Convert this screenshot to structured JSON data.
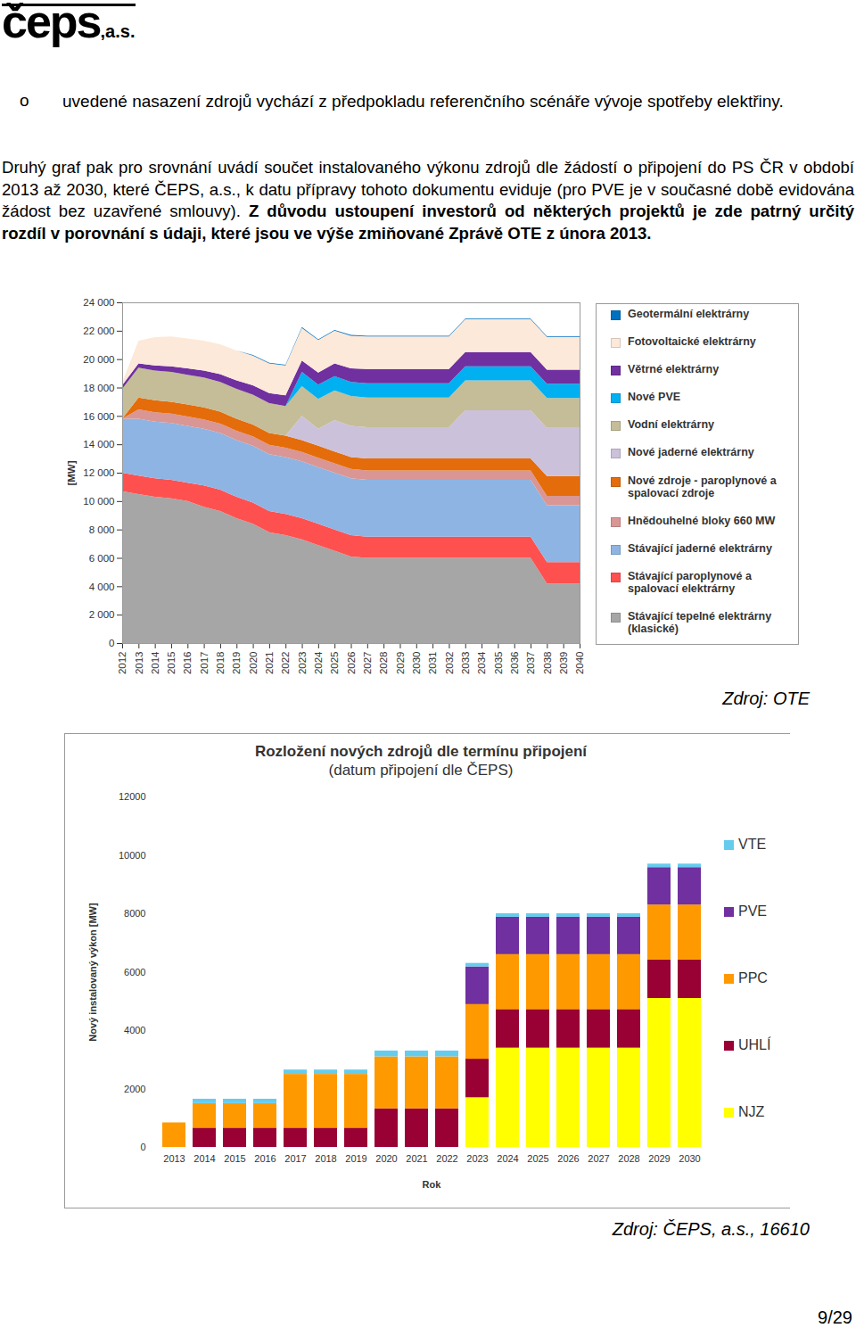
{
  "header": {
    "logo": "čeps",
    "logo_suffix": ",a.s."
  },
  "bullet_marker": "o",
  "bullet": "uvedené nasazení zdrojů vychází z předpokladu referenčního scénáře vývoje spotřeby elektřiny.",
  "paragraph": {
    "text": "Druhý graf pak pro srovnání uvádí součet instalovaného výkonu zdrojů dle žádostí o připojení do PS ČR v období 2013 až 2030, které ČEPS, a.s., k datu přípravy tohoto dokumentu eviduje (pro PVE je v současné době evidována žádost bez uzavřené smlouvy).",
    "bold": "Z důvodu ustoupení investorů od některých projektů je zde patrný určitý rozdíl v porovnání s údaji, které jsou ve výše zmiňované Zprávě OTE z února 2013."
  },
  "chart_data": [
    {
      "type": "area",
      "stacked": true,
      "ylabel": "[MW]",
      "x": [
        2012,
        2013,
        2014,
        2015,
        2016,
        2017,
        2018,
        2019,
        2020,
        2021,
        2022,
        2023,
        2024,
        2025,
        2026,
        2027,
        2028,
        2029,
        2030,
        2031,
        2032,
        2033,
        2034,
        2035,
        2036,
        2037,
        2038,
        2039,
        2040
      ],
      "xlim": [
        2012,
        2040
      ],
      "xticks": [
        2012,
        2013,
        2014,
        2015,
        2016,
        2017,
        2018,
        2019,
        2020,
        2021,
        2022,
        2023,
        2024,
        2025,
        2026,
        2027,
        2028,
        2029,
        2030,
        2031,
        2032,
        2033,
        2034,
        2035,
        2036,
        2037,
        2038,
        2039,
        2040
      ],
      "ylim": [
        0,
        24000
      ],
      "yticks": [
        0,
        {
          "value": 2000,
          "label": "2 000"
        },
        {
          "value": 4000,
          "label": "4 000"
        },
        {
          "value": 6000,
          "label": "6 000"
        },
        {
          "value": 8000,
          "label": "8 000"
        },
        {
          "value": 10000,
          "label": "10 000"
        },
        {
          "value": 12000,
          "label": "12 000"
        },
        {
          "value": 14000,
          "label": "14 000"
        },
        {
          "value": 16000,
          "label": "16 000"
        },
        {
          "value": 18000,
          "label": "18 000"
        },
        {
          "value": 20000,
          "label": "20 000"
        },
        {
          "value": 22000,
          "label": "22 000"
        },
        {
          "value": 24000,
          "label": "24 000"
        }
      ],
      "grid": false,
      "legend": "right",
      "series": [
        {
          "name": "Stávající tepelné elektrárny (klasické)",
          "color": "#a6a6a6",
          "values": [
            10700,
            10500,
            10300,
            10200,
            10000,
            9600,
            9300,
            8800,
            8400,
            7800,
            7600,
            7300,
            6900,
            6500,
            6100,
            6000,
            6000,
            6000,
            6000,
            6000,
            6000,
            6000,
            6000,
            6000,
            6000,
            6000,
            4200,
            4200,
            4200
          ]
        },
        {
          "name": "Stávající paroplynové a spalovací elektrárny",
          "color": "#ff5050",
          "values": [
            1300,
            1300,
            1300,
            1300,
            1300,
            1500,
            1500,
            1500,
            1500,
            1500,
            1500,
            1500,
            1500,
            1500,
            1500,
            1500,
            1500,
            1500,
            1500,
            1500,
            1500,
            1500,
            1500,
            1500,
            1500,
            1500,
            1500,
            1500,
            1500
          ]
        },
        {
          "name": "Stávající jaderné elektrárny",
          "color": "#8eb4e3",
          "values": [
            3800,
            4000,
            4000,
            4000,
            4000,
            4000,
            4000,
            4000,
            4000,
            4000,
            4000,
            4000,
            4000,
            4000,
            4000,
            4000,
            4000,
            4000,
            4000,
            4000,
            4000,
            4000,
            4000,
            4000,
            4000,
            4000,
            4000,
            4000,
            4000
          ]
        },
        {
          "name": "Hnědouhelné bloky 660 MW",
          "color": "#d99694",
          "values": [
            0,
            660,
            660,
            660,
            660,
            660,
            660,
            660,
            660,
            660,
            660,
            660,
            660,
            660,
            660,
            660,
            660,
            660,
            660,
            660,
            660,
            660,
            660,
            660,
            660,
            660,
            660,
            660,
            660
          ]
        },
        {
          "name": "Nové zdroje - paroplynové a spalovací zdroje",
          "color": "#e46c0a",
          "values": [
            0,
            840,
            840,
            840,
            840,
            840,
            840,
            840,
            840,
            840,
            840,
            840,
            840,
            840,
            840,
            840,
            840,
            840,
            840,
            840,
            840,
            840,
            840,
            840,
            840,
            840,
            1400,
            1400,
            1400
          ]
        },
        {
          "name": "Nové jaderné elektrárny",
          "color": "#ccc1da",
          "values": [
            0,
            0,
            0,
            0,
            0,
            0,
            0,
            0,
            0,
            0,
            0,
            1700,
            1200,
            2200,
            2200,
            2200,
            2200,
            2200,
            2200,
            2200,
            2200,
            3400,
            3400,
            3400,
            3400,
            3400,
            3400,
            3400,
            3400
          ]
        },
        {
          "name": "Vodní elektrárny",
          "color": "#c4bd97",
          "values": [
            2100,
            2100,
            2100,
            2100,
            2100,
            2100,
            2100,
            2100,
            2100,
            2100,
            2100,
            2100,
            2100,
            2100,
            2100,
            2100,
            2100,
            2100,
            2100,
            2100,
            2100,
            2100,
            2100,
            2100,
            2100,
            2100,
            2100,
            2100,
            2100
          ]
        },
        {
          "name": "Nové PVE",
          "color": "#00b0f0",
          "values": [
            0,
            0,
            0,
            0,
            0,
            0,
            0,
            0,
            0,
            0,
            0,
            1000,
            1000,
            1000,
            1000,
            1000,
            1000,
            1000,
            1000,
            1000,
            1000,
            1000,
            1000,
            1000,
            1000,
            1000,
            1000,
            1000,
            1000
          ]
        },
        {
          "name": "Větrné elektrárny",
          "color": "#7030a0",
          "values": [
            260,
            300,
            350,
            400,
            450,
            500,
            550,
            600,
            650,
            700,
            750,
            800,
            850,
            900,
            950,
            1000,
            1000,
            1000,
            1000,
            1000,
            1000,
            1000,
            1000,
            1000,
            1000,
            1000,
            1000,
            1000,
            1000
          ]
        },
        {
          "name": "Fotovoltaické elektrárny",
          "color": "#fde9d9",
          "values": [
            200,
            1600,
            2000,
            2100,
            2100,
            2100,
            2100,
            2100,
            2100,
            2100,
            2100,
            2300,
            2300,
            2300,
            2300,
            2300,
            2300,
            2300,
            2300,
            2300,
            2300,
            2300,
            2300,
            2300,
            2300,
            2300,
            2300,
            2300,
            2300
          ]
        },
        {
          "name": "Geotermální elektrárny",
          "color": "#0070c0",
          "values": [
            0,
            0,
            0,
            0,
            0,
            0,
            0,
            0,
            50,
            50,
            50,
            50,
            50,
            50,
            50,
            50,
            50,
            50,
            50,
            50,
            50,
            50,
            50,
            50,
            50,
            50,
            50,
            50,
            50
          ]
        }
      ],
      "source": "Zdroj: OTE"
    },
    {
      "type": "bar",
      "stacked": true,
      "title": "Rozložení nových zdrojů dle termínu připojení",
      "subtitle": "(datum připojení dle ČEPS)",
      "xlabel": "Rok",
      "ylabel": "Nový instalovaný výkon [MW]",
      "categories": [
        "2013",
        "2014",
        "2015",
        "2016",
        "2017",
        "2018",
        "2019",
        "2020",
        "2021",
        "2022",
        "2023",
        "2024",
        "2025",
        "2026",
        "2027",
        "2028",
        "2029",
        "2030"
      ],
      "ylim": [
        0,
        12000
      ],
      "yticks": [
        0,
        2000,
        4000,
        6000,
        8000,
        10000,
        12000
      ],
      "grid": false,
      "legend": "right",
      "series": [
        {
          "name": "NJZ",
          "color": "#ffff00",
          "values": [
            0,
            0,
            0,
            0,
            0,
            0,
            0,
            0,
            0,
            0,
            1700,
            3400,
            3400,
            3400,
            3400,
            3400,
            5100,
            5100
          ]
        },
        {
          "name": "UHLÍ",
          "color": "#990033",
          "values": [
            0,
            660,
            660,
            660,
            660,
            660,
            660,
            1320,
            1320,
            1320,
            1320,
            1320,
            1320,
            1320,
            1320,
            1320,
            1320,
            1320
          ]
        },
        {
          "name": "PPC",
          "color": "#ff9900",
          "values": [
            840,
            840,
            840,
            840,
            1840,
            1840,
            1840,
            1780,
            1780,
            1780,
            1870,
            1880,
            1880,
            1880,
            1880,
            1880,
            1880,
            1880
          ]
        },
        {
          "name": "PVE",
          "color": "#7030a0",
          "values": [
            0,
            0,
            0,
            0,
            0,
            0,
            0,
            0,
            0,
            0,
            1290,
            1280,
            1280,
            1280,
            1280,
            1280,
            1280,
            1280
          ]
        },
        {
          "name": "VTE",
          "color": "#66ccee",
          "values": [
            0,
            150,
            150,
            150,
            150,
            150,
            150,
            200,
            200,
            200,
            120,
            120,
            120,
            120,
            120,
            120,
            120,
            120
          ]
        }
      ],
      "source": "Zdroj: ČEPS, a.s., 16610"
    }
  ],
  "page_number": "9/29"
}
